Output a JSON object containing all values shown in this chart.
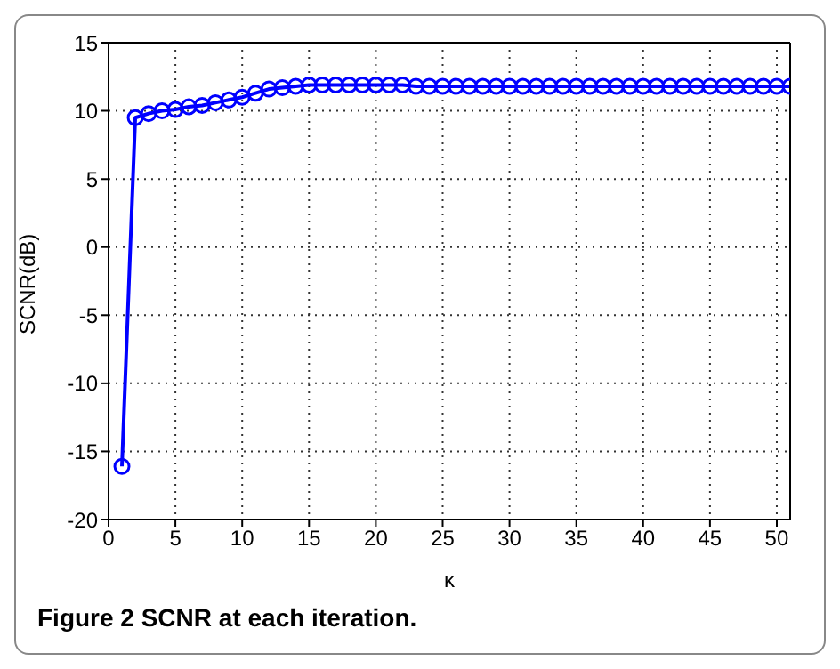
{
  "chart_data": {
    "type": "line",
    "xlabel": "κ",
    "ylabel": "SCNR(dB)",
    "annotations": [
      "Figure 2 SCNR at each iteration."
    ],
    "x": [
      1,
      2,
      3,
      4,
      5,
      6,
      7,
      8,
      9,
      10,
      11,
      12,
      13,
      14,
      15,
      16,
      17,
      18,
      19,
      20,
      21,
      22,
      23,
      24,
      25,
      26,
      27,
      28,
      29,
      30,
      31,
      32,
      33,
      34,
      35,
      36,
      37,
      38,
      39,
      40,
      41,
      42,
      43,
      44,
      45,
      46,
      47,
      48,
      49,
      50,
      51
    ],
    "series": [
      {
        "color": "#0000ff",
        "values": [
          -16.1,
          9.5,
          9.8,
          10.0,
          10.1,
          10.3,
          10.4,
          10.6,
          10.8,
          11.0,
          11.3,
          11.6,
          11.7,
          11.8,
          11.9,
          11.9,
          11.9,
          11.9,
          11.9,
          11.9,
          11.9,
          11.9,
          11.8,
          11.8,
          11.8,
          11.8,
          11.8,
          11.8,
          11.8,
          11.8,
          11.8,
          11.8,
          11.8,
          11.8,
          11.8,
          11.8,
          11.8,
          11.8,
          11.8,
          11.8,
          11.8,
          11.8,
          11.8,
          11.8,
          11.8,
          11.8,
          11.8,
          11.8,
          11.8,
          11.8,
          11.8
        ]
      }
    ],
    "xlim": [
      0,
      51
    ],
    "xticks": [
      0,
      5,
      10,
      15,
      20,
      25,
      30,
      35,
      40,
      45,
      50
    ],
    "ylim": [
      -20,
      15
    ],
    "yticks": [
      -20,
      -15,
      -10,
      -5,
      0,
      5,
      10,
      15
    ],
    "grid": true,
    "marker": "circle",
    "line_style": "solid",
    "legend": false
  }
}
